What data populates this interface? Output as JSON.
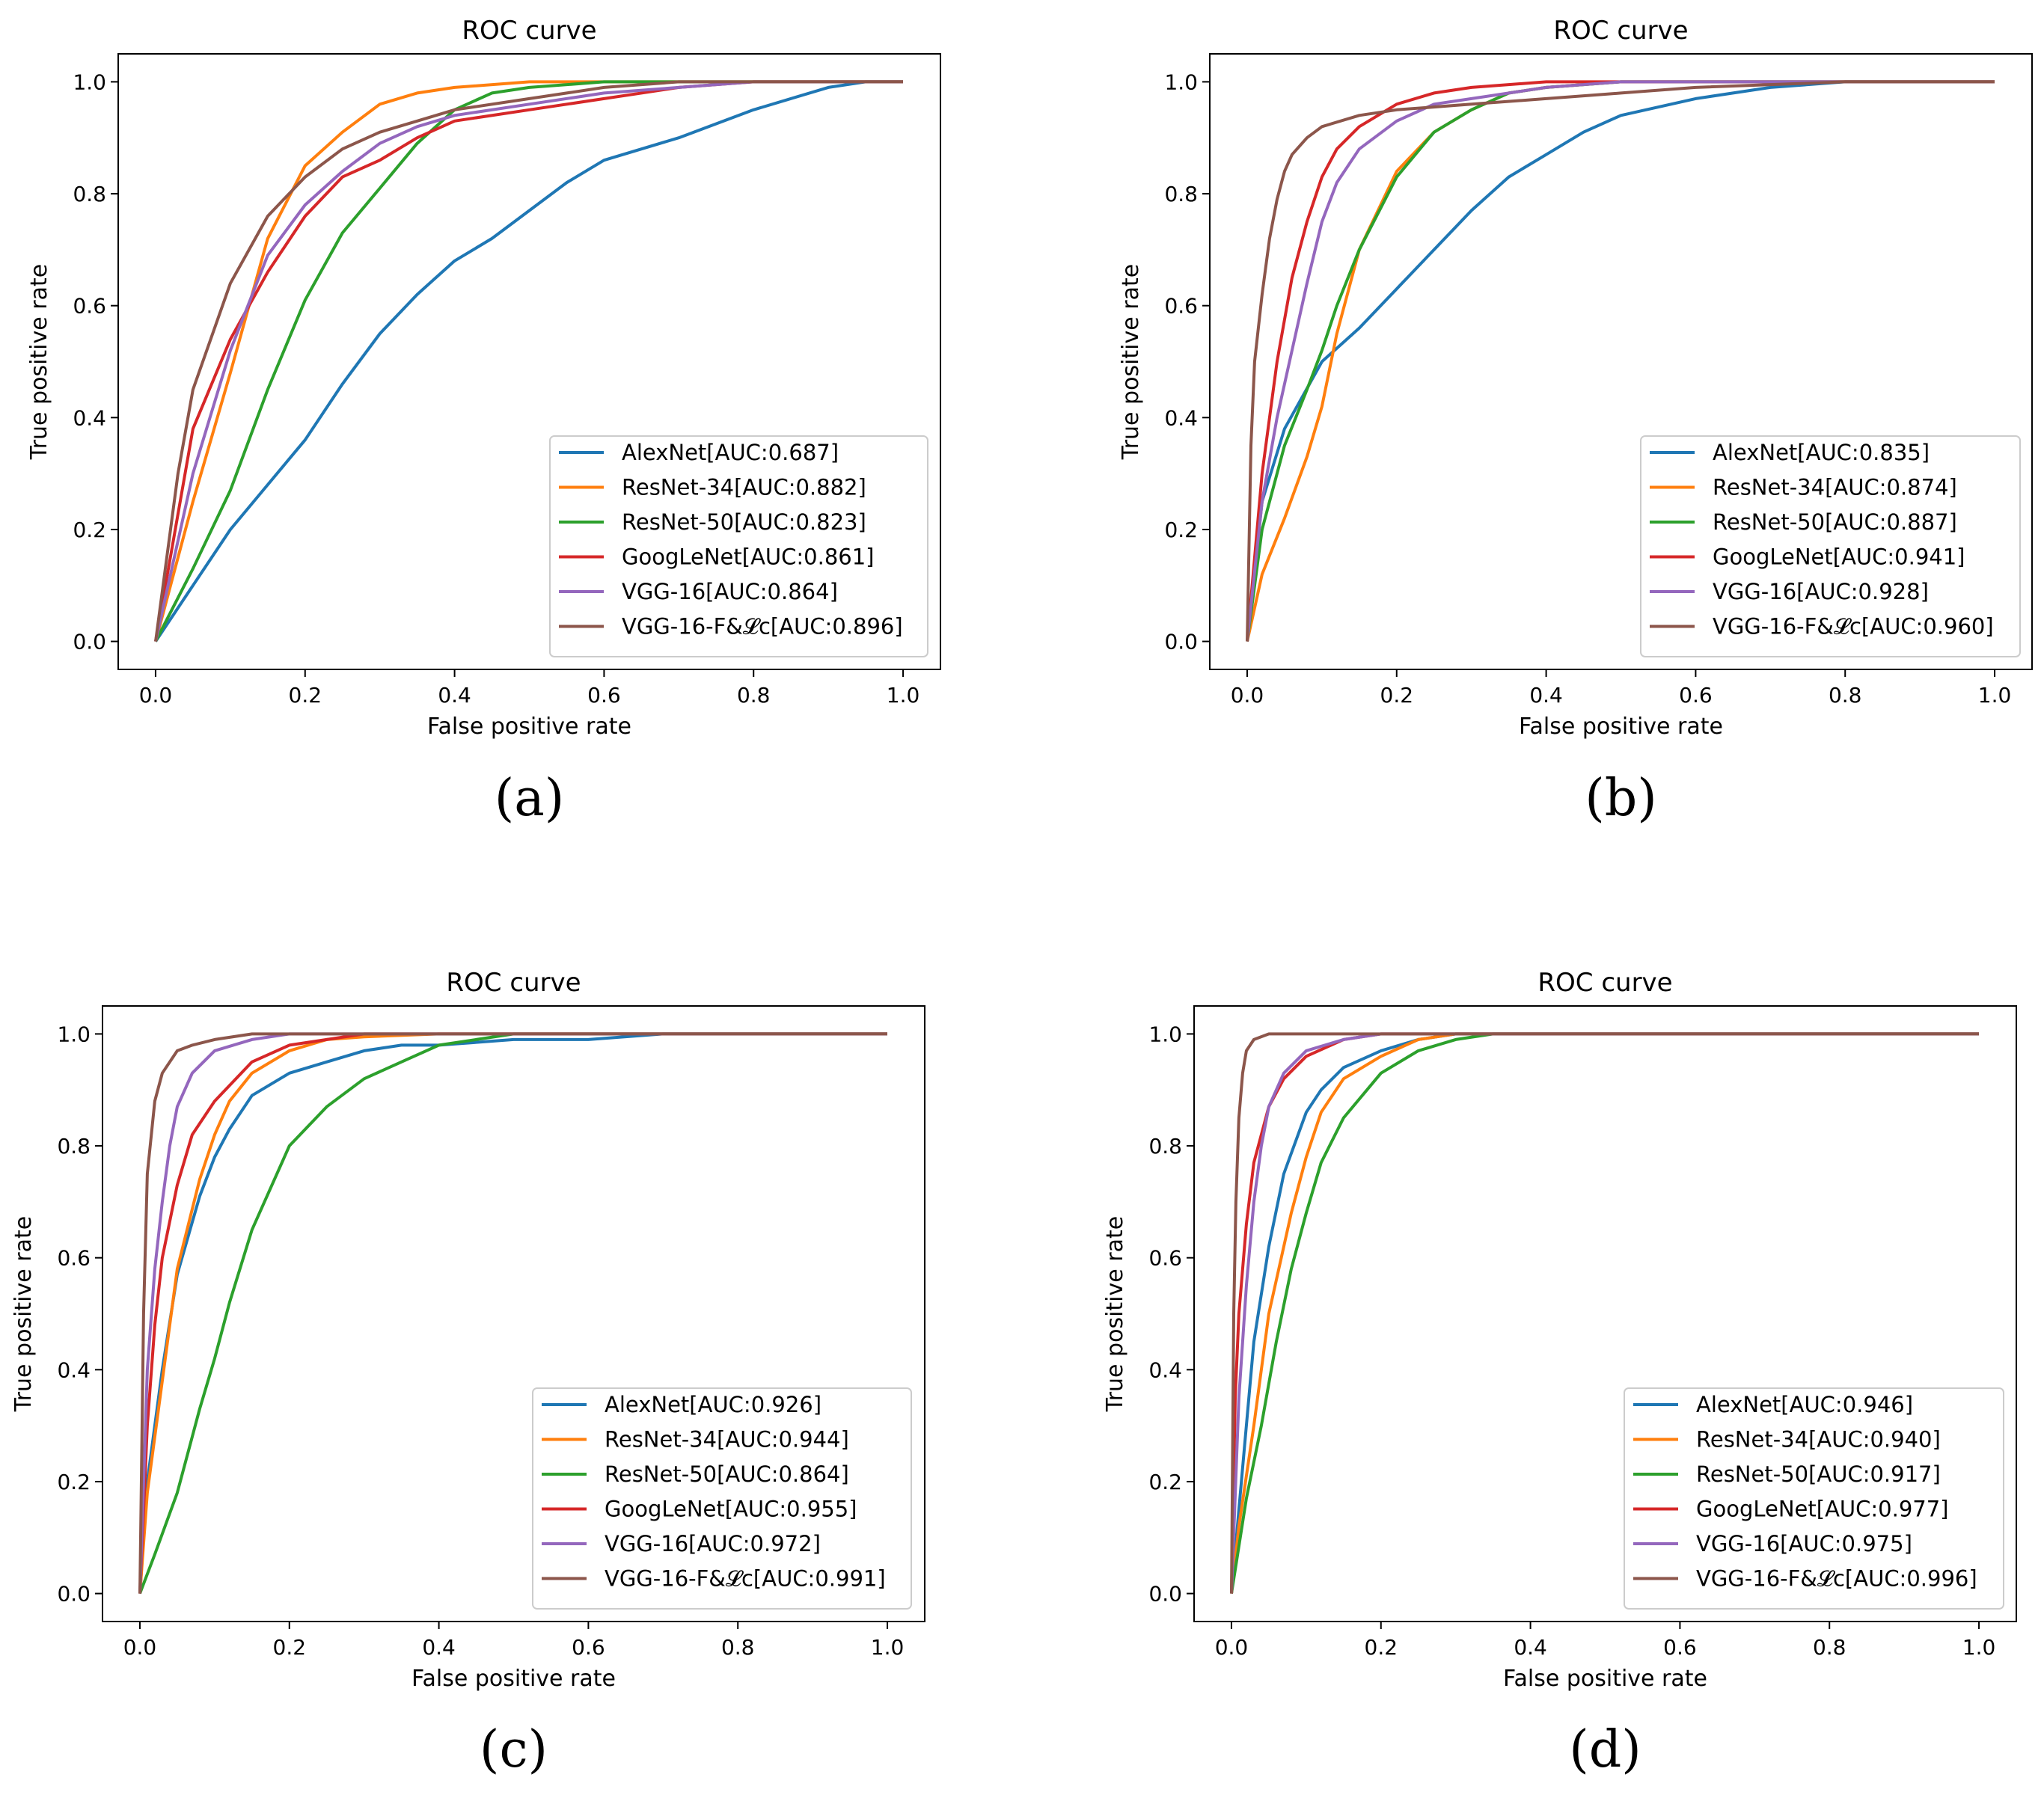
{
  "chart_data": [
    {
      "panel": "(a)",
      "type": "line",
      "title": "ROC curve",
      "xlabel": "False positive rate",
      "ylabel": "True positive rate",
      "xlim": [
        -0.05,
        1.05
      ],
      "ylim": [
        -0.05,
        1.05
      ],
      "xticks": [
        "0.0",
        "0.2",
        "0.4",
        "0.6",
        "0.8",
        "1.0"
      ],
      "yticks": [
        "0.0",
        "0.2",
        "0.4",
        "0.6",
        "0.8",
        "1.0"
      ],
      "legend_position": "lower right",
      "series": [
        {
          "name": "AlexNet[AUC:0.687]",
          "color": "#1f77b4",
          "x": [
            0,
            0.05,
            0.1,
            0.15,
            0.2,
            0.25,
            0.3,
            0.35,
            0.4,
            0.45,
            0.5,
            0.55,
            0.6,
            0.7,
            0.8,
            0.9,
            0.95,
            1.0
          ],
          "y": [
            0,
            0.1,
            0.2,
            0.28,
            0.36,
            0.46,
            0.55,
            0.62,
            0.68,
            0.72,
            0.77,
            0.82,
            0.86,
            0.9,
            0.95,
            0.99,
            1.0,
            1.0
          ]
        },
        {
          "name": "ResNet-34[AUC:0.882]",
          "color": "#ff7f0e",
          "x": [
            0,
            0.05,
            0.1,
            0.15,
            0.2,
            0.25,
            0.3,
            0.35,
            0.4,
            0.5,
            0.6,
            1.0
          ],
          "y": [
            0,
            0.25,
            0.48,
            0.72,
            0.85,
            0.91,
            0.96,
            0.98,
            0.99,
            1.0,
            1.0,
            1.0
          ]
        },
        {
          "name": "ResNet-50[AUC:0.823]",
          "color": "#2ca02c",
          "x": [
            0,
            0.05,
            0.1,
            0.15,
            0.2,
            0.25,
            0.3,
            0.35,
            0.4,
            0.45,
            0.5,
            0.6,
            1.0
          ],
          "y": [
            0,
            0.13,
            0.27,
            0.45,
            0.61,
            0.73,
            0.81,
            0.89,
            0.95,
            0.98,
            0.99,
            1.0,
            1.0
          ]
        },
        {
          "name": "GoogLeNet[AUC:0.861]",
          "color": "#d62728",
          "x": [
            0,
            0.05,
            0.1,
            0.15,
            0.2,
            0.25,
            0.3,
            0.35,
            0.4,
            0.5,
            0.6,
            0.7,
            0.8,
            0.85,
            1.0
          ],
          "y": [
            0,
            0.38,
            0.54,
            0.66,
            0.76,
            0.83,
            0.86,
            0.9,
            0.93,
            0.95,
            0.97,
            0.99,
            1.0,
            1.0,
            1.0
          ]
        },
        {
          "name": "VGG-16[AUC:0.864]",
          "color": "#9467bd",
          "x": [
            0,
            0.05,
            0.1,
            0.15,
            0.2,
            0.25,
            0.3,
            0.35,
            0.4,
            0.5,
            0.6,
            0.7,
            0.8,
            1.0
          ],
          "y": [
            0,
            0.3,
            0.52,
            0.69,
            0.78,
            0.84,
            0.89,
            0.92,
            0.94,
            0.96,
            0.98,
            0.99,
            1.0,
            1.0
          ]
        },
        {
          "name": "VGG-16-F&𝓛c[AUC:0.896]",
          "color": "#8c564b",
          "x": [
            0,
            0.03,
            0.05,
            0.1,
            0.15,
            0.2,
            0.25,
            0.3,
            0.35,
            0.4,
            0.5,
            0.6,
            0.7,
            0.8,
            1.0
          ],
          "y": [
            0,
            0.3,
            0.45,
            0.64,
            0.76,
            0.83,
            0.88,
            0.91,
            0.93,
            0.95,
            0.97,
            0.99,
            1.0,
            1.0,
            1.0
          ]
        }
      ]
    },
    {
      "panel": "(b)",
      "type": "line",
      "title": "ROC curve",
      "xlabel": "False positive rate",
      "ylabel": "True positive rate",
      "xlim": [
        -0.05,
        1.05
      ],
      "ylim": [
        -0.05,
        1.05
      ],
      "xticks": [
        "0.0",
        "0.2",
        "0.4",
        "0.6",
        "0.8",
        "1.0"
      ],
      "yticks": [
        "0.0",
        "0.2",
        "0.4",
        "0.6",
        "0.8",
        "1.0"
      ],
      "legend_position": "lower right",
      "series": [
        {
          "name": "AlexNet[AUC:0.835]",
          "color": "#1f77b4",
          "x": [
            0,
            0.02,
            0.05,
            0.1,
            0.15,
            0.2,
            0.25,
            0.3,
            0.35,
            0.4,
            0.45,
            0.5,
            0.6,
            0.7,
            0.8,
            1.0
          ],
          "y": [
            0,
            0.25,
            0.38,
            0.5,
            0.56,
            0.63,
            0.7,
            0.77,
            0.83,
            0.87,
            0.91,
            0.94,
            0.97,
            0.99,
            1.0,
            1.0
          ]
        },
        {
          "name": "ResNet-34[AUC:0.874]",
          "color": "#ff7f0e",
          "x": [
            0,
            0.02,
            0.05,
            0.08,
            0.1,
            0.12,
            0.15,
            0.2,
            0.25,
            0.3,
            0.35,
            0.4,
            0.5,
            1.0
          ],
          "y": [
            0,
            0.12,
            0.22,
            0.33,
            0.42,
            0.55,
            0.7,
            0.84,
            0.91,
            0.95,
            0.98,
            0.99,
            1.0,
            1.0
          ]
        },
        {
          "name": "ResNet-50[AUC:0.887]",
          "color": "#2ca02c",
          "x": [
            0,
            0.02,
            0.05,
            0.08,
            0.1,
            0.12,
            0.15,
            0.2,
            0.25,
            0.3,
            0.35,
            0.4,
            0.5,
            1.0
          ],
          "y": [
            0,
            0.2,
            0.35,
            0.45,
            0.52,
            0.6,
            0.7,
            0.83,
            0.91,
            0.95,
            0.98,
            0.99,
            1.0,
            1.0
          ]
        },
        {
          "name": "GoogLeNet[AUC:0.941]",
          "color": "#d62728",
          "x": [
            0,
            0.02,
            0.04,
            0.06,
            0.08,
            0.1,
            0.12,
            0.15,
            0.2,
            0.25,
            0.3,
            0.4,
            0.5,
            1.0
          ],
          "y": [
            0,
            0.3,
            0.5,
            0.65,
            0.75,
            0.83,
            0.88,
            0.92,
            0.96,
            0.98,
            0.99,
            1.0,
            1.0,
            1.0
          ]
        },
        {
          "name": "VGG-16[AUC:0.928]",
          "color": "#9467bd",
          "x": [
            0,
            0.02,
            0.04,
            0.06,
            0.08,
            0.1,
            0.12,
            0.15,
            0.2,
            0.25,
            0.3,
            0.4,
            0.5,
            1.0
          ],
          "y": [
            0,
            0.25,
            0.4,
            0.52,
            0.64,
            0.75,
            0.82,
            0.88,
            0.93,
            0.96,
            0.97,
            0.99,
            1.0,
            1.0
          ]
        },
        {
          "name": "VGG-16-F&𝓛c[AUC:0.960]",
          "color": "#8c564b",
          "x": [
            0,
            0.005,
            0.01,
            0.02,
            0.03,
            0.04,
            0.05,
            0.06,
            0.08,
            0.1,
            0.15,
            0.2,
            0.3,
            0.4,
            0.5,
            0.6,
            0.8,
            1.0
          ],
          "y": [
            0,
            0.35,
            0.5,
            0.62,
            0.72,
            0.79,
            0.84,
            0.87,
            0.9,
            0.92,
            0.94,
            0.95,
            0.96,
            0.97,
            0.98,
            0.99,
            1.0,
            1.0
          ]
        }
      ]
    },
    {
      "panel": "(c)",
      "type": "line",
      "title": "ROC curve",
      "xlabel": "False positive rate",
      "ylabel": "True positive rate",
      "xlim": [
        -0.05,
        1.05
      ],
      "ylim": [
        -0.05,
        1.05
      ],
      "xticks": [
        "0.0",
        "0.2",
        "0.4",
        "0.6",
        "0.8",
        "1.0"
      ],
      "yticks": [
        "0.0",
        "0.2",
        "0.4",
        "0.6",
        "0.8",
        "1.0"
      ],
      "legend_position": "lower right",
      "series": [
        {
          "name": "AlexNet[AUC:0.926]",
          "color": "#1f77b4",
          "x": [
            0,
            0.01,
            0.03,
            0.05,
            0.08,
            0.1,
            0.12,
            0.15,
            0.2,
            0.25,
            0.3,
            0.35,
            0.4,
            0.5,
            0.6,
            0.7,
            1.0
          ],
          "y": [
            0,
            0.2,
            0.4,
            0.57,
            0.71,
            0.78,
            0.83,
            0.89,
            0.93,
            0.95,
            0.97,
            0.98,
            0.98,
            0.99,
            0.99,
            1.0,
            1.0
          ]
        },
        {
          "name": "ResNet-34[AUC:0.944]",
          "color": "#ff7f0e",
          "x": [
            0,
            0.01,
            0.03,
            0.05,
            0.08,
            0.1,
            0.12,
            0.15,
            0.2,
            0.25,
            0.3,
            0.4,
            1.0
          ],
          "y": [
            0,
            0.18,
            0.38,
            0.58,
            0.74,
            0.82,
            0.88,
            0.93,
            0.97,
            0.99,
            0.995,
            1.0,
            1.0
          ]
        },
        {
          "name": "ResNet-50[AUC:0.864]",
          "color": "#2ca02c",
          "x": [
            0,
            0.02,
            0.05,
            0.08,
            0.1,
            0.12,
            0.15,
            0.18,
            0.2,
            0.25,
            0.3,
            0.35,
            0.4,
            0.45,
            0.5,
            1.0
          ],
          "y": [
            0,
            0.07,
            0.18,
            0.33,
            0.42,
            0.52,
            0.65,
            0.74,
            0.8,
            0.87,
            0.92,
            0.95,
            0.98,
            0.99,
            1.0,
            1.0
          ]
        },
        {
          "name": "GoogLeNet[AUC:0.955]",
          "color": "#d62728",
          "x": [
            0,
            0.01,
            0.02,
            0.03,
            0.05,
            0.07,
            0.1,
            0.15,
            0.2,
            0.25,
            0.3,
            0.4,
            1.0
          ],
          "y": [
            0,
            0.3,
            0.48,
            0.6,
            0.73,
            0.82,
            0.88,
            0.95,
            0.98,
            0.99,
            1.0,
            1.0,
            1.0
          ]
        },
        {
          "name": "VGG-16[AUC:0.972]",
          "color": "#9467bd",
          "x": [
            0,
            0.01,
            0.02,
            0.03,
            0.04,
            0.05,
            0.07,
            0.1,
            0.15,
            0.2,
            0.3,
            1.0
          ],
          "y": [
            0,
            0.4,
            0.58,
            0.7,
            0.8,
            0.87,
            0.93,
            0.97,
            0.99,
            1.0,
            1.0,
            1.0
          ]
        },
        {
          "name": "VGG-16-F&𝓛c[AUC:0.991]",
          "color": "#8c564b",
          "x": [
            0,
            0.005,
            0.01,
            0.02,
            0.03,
            0.05,
            0.07,
            0.1,
            0.15,
            0.2,
            1.0
          ],
          "y": [
            0,
            0.5,
            0.75,
            0.88,
            0.93,
            0.97,
            0.98,
            0.99,
            1.0,
            1.0,
            1.0
          ]
        }
      ]
    },
    {
      "panel": "(d)",
      "type": "line",
      "title": "ROC curve",
      "xlabel": "False positive rate",
      "ylabel": "True positive rate",
      "xlim": [
        -0.05,
        1.05
      ],
      "ylim": [
        -0.05,
        1.05
      ],
      "xticks": [
        "0.0",
        "0.2",
        "0.4",
        "0.6",
        "0.8",
        "1.0"
      ],
      "yticks": [
        "0.0",
        "0.2",
        "0.4",
        "0.6",
        "0.8",
        "1.0"
      ],
      "legend_position": "lower right",
      "series": [
        {
          "name": "AlexNet[AUC:0.946]",
          "color": "#1f77b4",
          "x": [
            0,
            0.01,
            0.02,
            0.03,
            0.05,
            0.07,
            0.1,
            0.12,
            0.15,
            0.2,
            0.25,
            0.3,
            0.4,
            1.0
          ],
          "y": [
            0,
            0.15,
            0.3,
            0.45,
            0.62,
            0.75,
            0.86,
            0.9,
            0.94,
            0.97,
            0.99,
            1.0,
            1.0,
            1.0
          ]
        },
        {
          "name": "ResNet-34[AUC:0.940]",
          "color": "#ff7f0e",
          "x": [
            0,
            0.01,
            0.03,
            0.05,
            0.08,
            0.1,
            0.12,
            0.15,
            0.2,
            0.25,
            0.3,
            0.4,
            1.0
          ],
          "y": [
            0,
            0.12,
            0.3,
            0.5,
            0.68,
            0.78,
            0.86,
            0.92,
            0.96,
            0.99,
            1.0,
            1.0,
            1.0
          ]
        },
        {
          "name": "ResNet-50[AUC:0.917]",
          "color": "#2ca02c",
          "x": [
            0,
            0.02,
            0.04,
            0.06,
            0.08,
            0.1,
            0.12,
            0.15,
            0.2,
            0.25,
            0.3,
            0.35,
            0.4,
            1.0
          ],
          "y": [
            0,
            0.17,
            0.3,
            0.45,
            0.58,
            0.68,
            0.77,
            0.85,
            0.93,
            0.97,
            0.99,
            1.0,
            1.0,
            1.0
          ]
        },
        {
          "name": "GoogLeNet[AUC:0.977]",
          "color": "#d62728",
          "x": [
            0,
            0.005,
            0.01,
            0.02,
            0.03,
            0.05,
            0.07,
            0.1,
            0.15,
            0.2,
            0.3,
            1.0
          ],
          "y": [
            0,
            0.35,
            0.5,
            0.66,
            0.77,
            0.87,
            0.92,
            0.96,
            0.99,
            1.0,
            1.0,
            1.0
          ]
        },
        {
          "name": "VGG-16[AUC:0.975]",
          "color": "#9467bd",
          "x": [
            0,
            0.01,
            0.02,
            0.03,
            0.04,
            0.05,
            0.07,
            0.1,
            0.15,
            0.2,
            0.3,
            1.0
          ],
          "y": [
            0,
            0.35,
            0.55,
            0.7,
            0.8,
            0.87,
            0.93,
            0.97,
            0.99,
            1.0,
            1.0,
            1.0
          ]
        },
        {
          "name": "VGG-16-F&𝓛c[AUC:0.996]",
          "color": "#8c564b",
          "x": [
            0,
            0.003,
            0.006,
            0.01,
            0.015,
            0.02,
            0.03,
            0.05,
            0.1,
            1.0
          ],
          "y": [
            0,
            0.5,
            0.7,
            0.85,
            0.93,
            0.97,
            0.99,
            1.0,
            1.0,
            1.0
          ]
        }
      ]
    }
  ]
}
